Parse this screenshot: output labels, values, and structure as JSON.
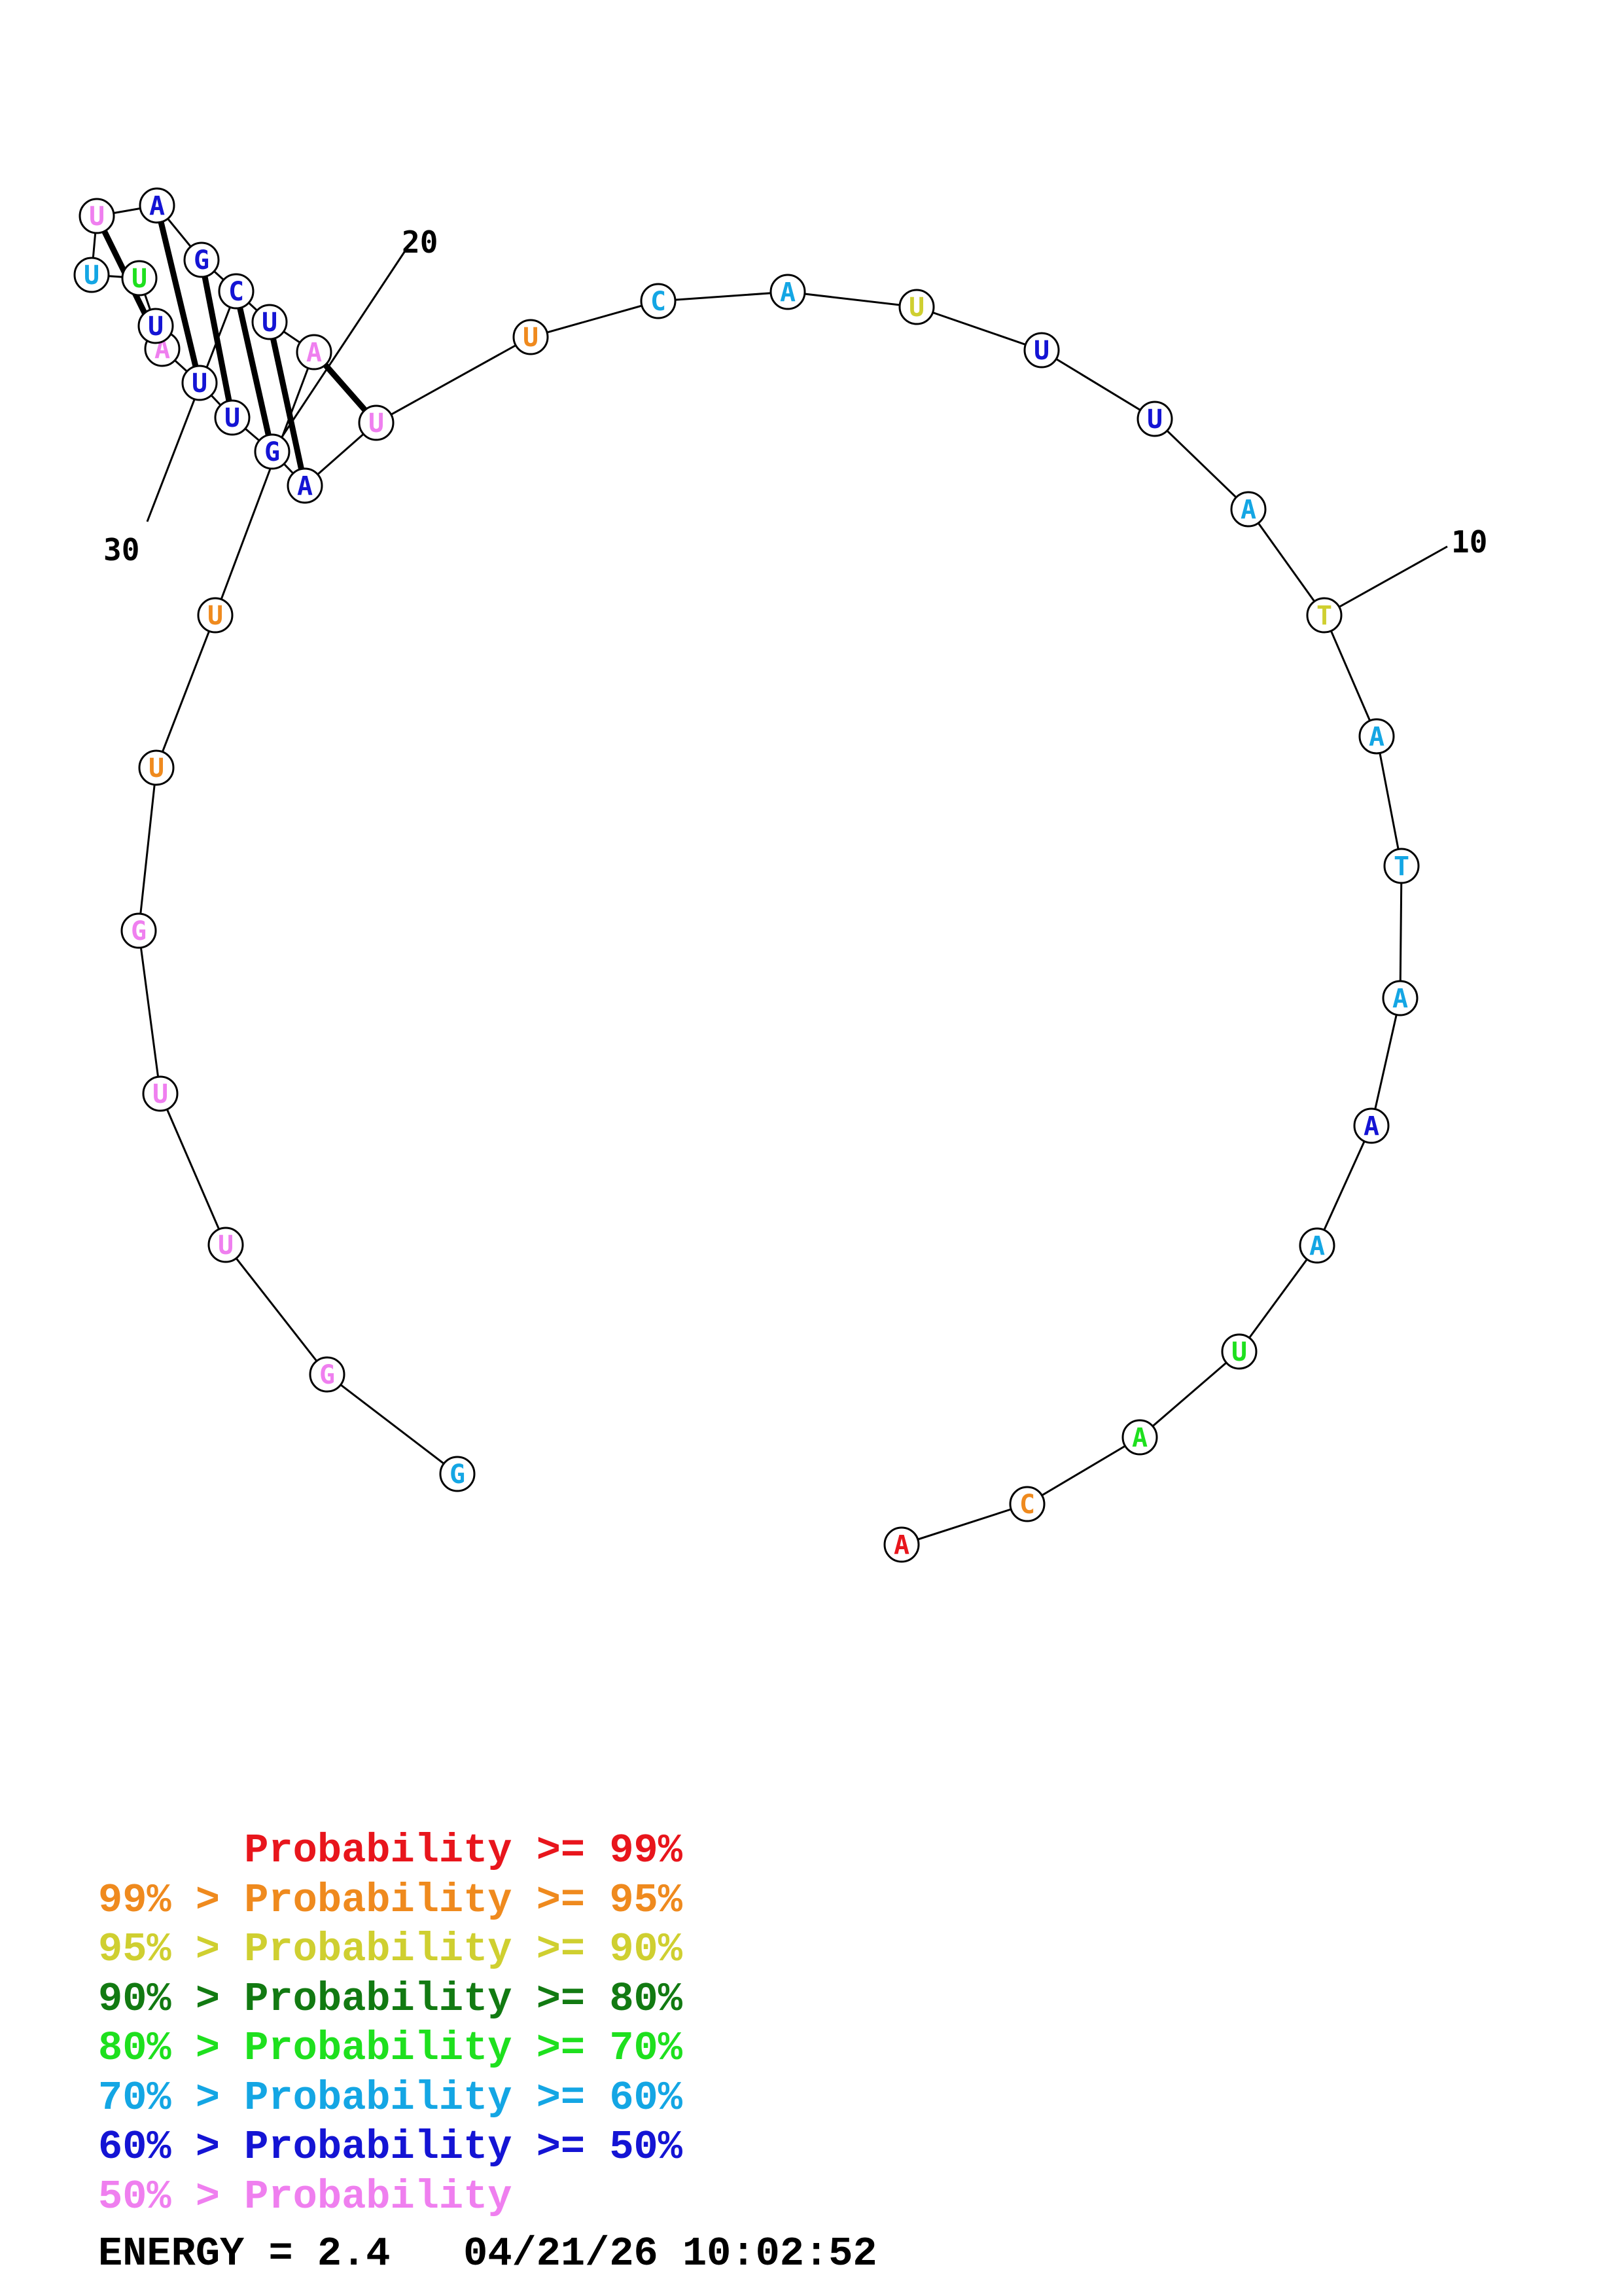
{
  "colors": {
    "p99": "#e8151c",
    "p95": "#ef8a1e",
    "p90": "#cfcf30",
    "p80": "#127a12",
    "p70": "#1ee01e",
    "p60": "#14a6e4",
    "p50": "#1414d4",
    "plow": "#ef7fef"
  },
  "nucleotides": [
    {
      "base": "A",
      "color": "p99"
    },
    {
      "base": "C",
      "color": "p95"
    },
    {
      "base": "A",
      "color": "p70"
    },
    {
      "base": "U",
      "color": "p70"
    },
    {
      "base": "A",
      "color": "p60"
    },
    {
      "base": "A",
      "color": "p50"
    },
    {
      "base": "A",
      "color": "p60"
    },
    {
      "base": "T",
      "color": "p60"
    },
    {
      "base": "A",
      "color": "p60"
    },
    {
      "base": "T",
      "color": "p90"
    },
    {
      "base": "A",
      "color": "p60"
    },
    {
      "base": "U",
      "color": "p50"
    },
    {
      "base": "U",
      "color": "p50"
    },
    {
      "base": "U",
      "color": "p90"
    },
    {
      "base": "A",
      "color": "p60"
    },
    {
      "base": "C",
      "color": "p60"
    },
    {
      "base": "U",
      "color": "p95"
    },
    {
      "base": "U",
      "color": "plow"
    },
    {
      "base": "A",
      "color": "p50"
    },
    {
      "base": "G",
      "color": "p50"
    },
    {
      "base": "U",
      "color": "p50"
    },
    {
      "base": "U",
      "color": "p50"
    },
    {
      "base": "A",
      "color": "plow"
    },
    {
      "base": "U",
      "color": "p50"
    },
    {
      "base": "U",
      "color": "p70"
    },
    {
      "base": "U",
      "color": "p60"
    },
    {
      "base": "U",
      "color": "plow"
    },
    {
      "base": "A",
      "color": "p50"
    },
    {
      "base": "G",
      "color": "p50"
    },
    {
      "base": "C",
      "color": "p50"
    },
    {
      "base": "U",
      "color": "p50"
    },
    {
      "base": "A",
      "color": "plow"
    },
    {
      "base": "U",
      "color": "p95"
    },
    {
      "base": "U",
      "color": "p95"
    },
    {
      "base": "G",
      "color": "plow"
    },
    {
      "base": "U",
      "color": "plow"
    },
    {
      "base": "U",
      "color": "plow"
    },
    {
      "base": "G",
      "color": "plow"
    },
    {
      "base": "G",
      "color": "p60"
    }
  ],
  "pairs": [
    [
      18,
      32
    ],
    [
      19,
      31
    ],
    [
      20,
      30
    ],
    [
      21,
      29
    ],
    [
      22,
      28
    ],
    [
      23,
      27
    ]
  ],
  "position_labels": [
    "10",
    "20",
    "30"
  ],
  "legend": [
    {
      "prefix": "   ",
      "label": "Probability >= 99%",
      "color": "p99"
    },
    {
      "prefix": "99% > ",
      "label": "Probability >= 95%",
      "color": "p95"
    },
    {
      "prefix": "95% > ",
      "label": "Probability >= 90%",
      "color": "p90"
    },
    {
      "prefix": "90% > ",
      "label": "Probability >= 80%",
      "color": "p80"
    },
    {
      "prefix": "80% > ",
      "label": "Probability >= 70%",
      "color": "p70"
    },
    {
      "prefix": "70% > ",
      "label": "Probability >= 60%",
      "color": "p60"
    },
    {
      "prefix": "60% > ",
      "label": "Probability >= 50%",
      "color": "p50"
    },
    {
      "prefix": "50% > ",
      "label": "Probability",
      "color": "plow"
    }
  ],
  "footer": {
    "energy": "ENERGY = 2.4",
    "timestamp": "04/21/26 10:02:52"
  }
}
